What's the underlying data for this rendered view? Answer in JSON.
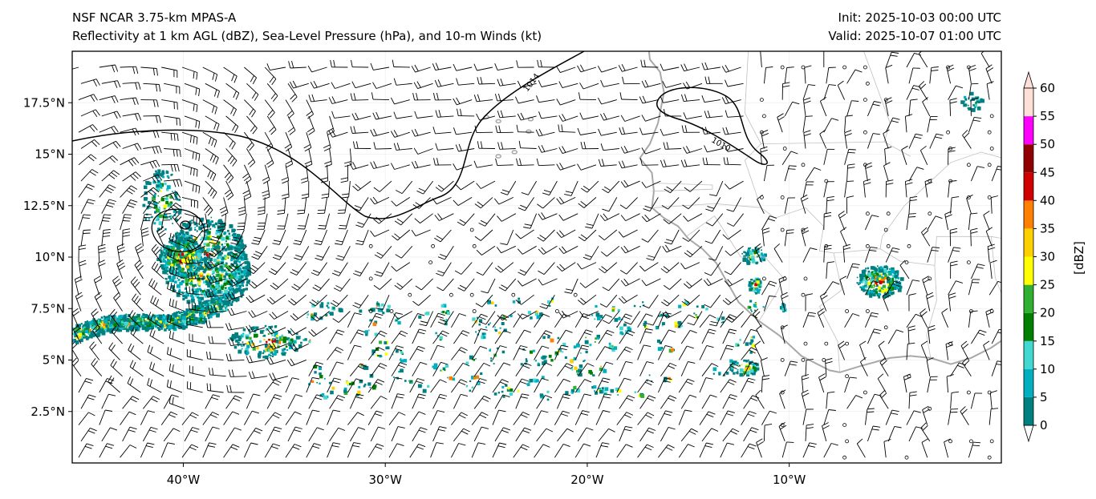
{
  "header": {
    "model": "NSF NCAR 3.75-km MPAS-A",
    "fields": "Reflectivity at 1 km AGL (dBZ), Sea-Level Pressure (hPa), and 10-m Winds (kt)",
    "init": "Init: 2025-10-03 00:00 UTC",
    "valid": "Valid: 2025-10-07 01:00 UTC"
  },
  "map": {
    "lon_range": [
      -45.5,
      0.5
    ],
    "lat_range": [
      0,
      20
    ],
    "lon_ticks": [
      {
        "value": -40,
        "label": "40°W"
      },
      {
        "value": -30,
        "label": "30°W"
      },
      {
        "value": -20,
        "label": "20°W"
      },
      {
        "value": -10,
        "label": "10°W"
      }
    ],
    "lat_ticks": [
      {
        "value": 2.5,
        "label": "2.5°N"
      },
      {
        "value": 5,
        "label": "5°N"
      },
      {
        "value": 7.5,
        "label": "7.5°N"
      },
      {
        "value": 10,
        "label": "10°N"
      },
      {
        "value": 12.5,
        "label": "12.5°N"
      },
      {
        "value": 15,
        "label": "15°N"
      },
      {
        "value": 17.5,
        "label": "17.5°N"
      }
    ],
    "isobar_labels": [
      "1014",
      "1010"
    ],
    "coast_color": "#a8a8a8",
    "border_color": "#c0c0c0",
    "isobar_color": "#000000"
  },
  "colorbar": {
    "unit": "[dBZ]",
    "levels": [
      "0",
      "5",
      "10",
      "15",
      "20",
      "25",
      "30",
      "35",
      "40",
      "45",
      "50",
      "55",
      "60"
    ],
    "colors": [
      "#008080",
      "#00b0c0",
      "#40d8d0",
      "#008000",
      "#30b030",
      "#ffff00",
      "#ffd000",
      "#ff8000",
      "#d00000",
      "#900000",
      "#ff00ff",
      "#ffe0d8"
    ]
  }
}
